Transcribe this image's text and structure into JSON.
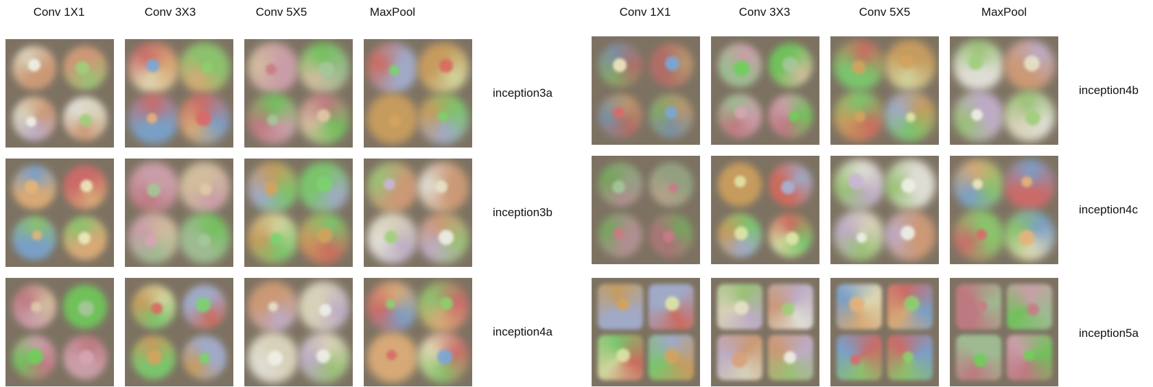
{
  "panels": [
    {
      "columns": [
        "Conv 1X1",
        "Conv 3X3",
        "Conv 5X5",
        "MaxPool"
      ],
      "rows": [
        {
          "label": "inception3a"
        },
        {
          "label": "inception3b"
        },
        {
          "label": "inception4a"
        }
      ]
    },
    {
      "columns": [
        "Conv 1X1",
        "Conv 3X3",
        "Conv 5X5",
        "MaxPool"
      ],
      "rows": [
        {
          "label": "inception4b"
        },
        {
          "label": "inception4c"
        },
        {
          "label": "inception5a"
        }
      ]
    }
  ],
  "colors": {
    "tile_background": "#7d7262"
  }
}
